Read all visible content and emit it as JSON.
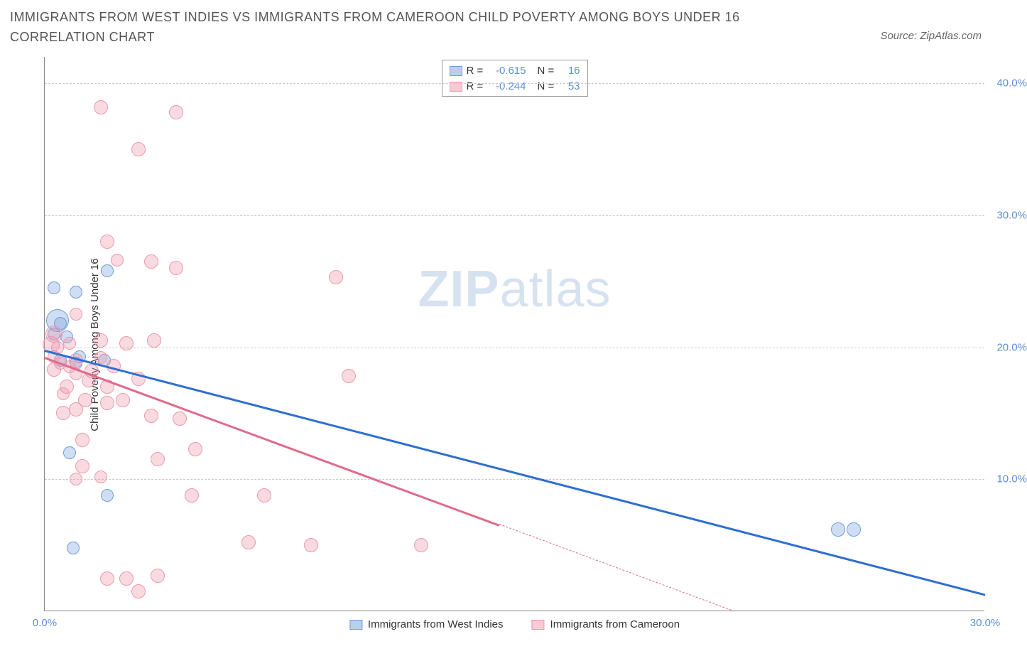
{
  "title": "IMMIGRANTS FROM WEST INDIES VS IMMIGRANTS FROM CAMEROON CHILD POVERTY AMONG BOYS UNDER 16 CORRELATION CHART",
  "source_label": "Source: ZipAtlas.com",
  "y_axis_label": "Child Poverty Among Boys Under 16",
  "watermark_bold": "ZIP",
  "watermark_rest": "atlas",
  "chart": {
    "type": "scatter-with-regression",
    "xlim": [
      0,
      30
    ],
    "ylim": [
      0,
      42
    ],
    "y_ticks": [
      10,
      20,
      30,
      40
    ],
    "y_tick_labels": [
      "10.0%",
      "20.0%",
      "30.0%",
      "40.0%"
    ],
    "x_ticks": [
      0,
      30
    ],
    "x_tick_labels": [
      "0.0%",
      "30.0%"
    ],
    "grid_color": "#cccccc",
    "background_color": "#ffffff",
    "axis_color": "#888888",
    "tick_label_color": "#5b8fd6",
    "y_tick_label_fontsize": 15,
    "series": [
      {
        "name": "Immigrants from West Indies",
        "color_fill": "rgba(120,160,220,0.35)",
        "color_stroke": "#6f9fd8",
        "trend_color": "#2e6fd0",
        "marker_radius": 9,
        "R": "-0.615",
        "N": "16",
        "points": [
          [
            0.3,
            24.5,
            9
          ],
          [
            1.0,
            24.2,
            9
          ],
          [
            0.4,
            22.0,
            16
          ],
          [
            0.3,
            21.0,
            9
          ],
          [
            0.7,
            20.8,
            9
          ],
          [
            2.0,
            25.8,
            9
          ],
          [
            0.5,
            19.0,
            9
          ],
          [
            1.1,
            19.3,
            9
          ],
          [
            1.0,
            18.8,
            9
          ],
          [
            1.9,
            19.0,
            9
          ],
          [
            0.8,
            12.0,
            9
          ],
          [
            2.0,
            8.8,
            9
          ],
          [
            0.9,
            4.8,
            9
          ],
          [
            25.3,
            6.2,
            10
          ],
          [
            25.8,
            6.2,
            10
          ],
          [
            0.5,
            21.8,
            9
          ]
        ],
        "trend": {
          "x1": 0,
          "y1": 19.8,
          "x2": 30,
          "y2": 1.3
        }
      },
      {
        "name": "Immigrants from Cameroon",
        "color_fill": "rgba(240,150,170,0.35)",
        "color_stroke": "#e89ab0",
        "trend_color": "#e06a8a",
        "marker_radius": 9,
        "R": "-0.244",
        "N": "53",
        "points": [
          [
            1.8,
            38.2,
            10
          ],
          [
            4.2,
            37.8,
            10
          ],
          [
            3.0,
            35.0,
            10
          ],
          [
            2.0,
            28.0,
            10
          ],
          [
            2.3,
            26.6,
            9
          ],
          [
            3.4,
            26.5,
            10
          ],
          [
            4.2,
            26.0,
            10
          ],
          [
            9.3,
            25.3,
            10
          ],
          [
            1.0,
            22.5,
            9
          ],
          [
            0.3,
            21.0,
            12
          ],
          [
            0.2,
            20.2,
            12
          ],
          [
            0.4,
            20.0,
            9
          ],
          [
            0.8,
            20.3,
            9
          ],
          [
            1.8,
            20.5,
            10
          ],
          [
            2.6,
            20.3,
            10
          ],
          [
            3.5,
            20.5,
            10
          ],
          [
            1.0,
            19.0,
            10
          ],
          [
            0.3,
            18.3,
            10
          ],
          [
            0.5,
            18.8,
            9
          ],
          [
            1.5,
            18.2,
            10
          ],
          [
            2.2,
            18.6,
            10
          ],
          [
            3.0,
            17.6,
            10
          ],
          [
            2.0,
            17.0,
            10
          ],
          [
            9.7,
            17.8,
            10
          ],
          [
            0.7,
            17.0,
            10
          ],
          [
            1.3,
            16.0,
            10
          ],
          [
            2.0,
            15.8,
            10
          ],
          [
            2.5,
            16.0,
            10
          ],
          [
            0.6,
            15.0,
            10
          ],
          [
            1.0,
            15.3,
            10
          ],
          [
            3.4,
            14.8,
            10
          ],
          [
            4.3,
            14.6,
            10
          ],
          [
            1.2,
            13.0,
            10
          ],
          [
            1.4,
            17.5,
            10
          ],
          [
            1.2,
            11.0,
            10
          ],
          [
            3.6,
            11.5,
            10
          ],
          [
            4.8,
            12.3,
            10
          ],
          [
            4.7,
            8.8,
            10
          ],
          [
            7.0,
            8.8,
            10
          ],
          [
            6.5,
            5.2,
            10
          ],
          [
            8.5,
            5.0,
            10
          ],
          [
            12.0,
            5.0,
            10
          ],
          [
            2.0,
            2.5,
            10
          ],
          [
            2.6,
            2.5,
            10
          ],
          [
            3.6,
            2.7,
            10
          ],
          [
            3.0,
            1.5,
            10
          ],
          [
            0.3,
            19.3,
            9
          ],
          [
            1.0,
            18.0,
            9
          ],
          [
            1.8,
            19.2,
            9
          ],
          [
            1.0,
            10.0,
            9
          ],
          [
            1.8,
            10.2,
            9
          ],
          [
            0.6,
            16.5,
            9
          ],
          [
            0.8,
            18.5,
            9
          ]
        ],
        "trend": {
          "x1": 0,
          "y1": 19.3,
          "x2": 14.5,
          "y2": 6.6
        },
        "trend_extrapolate": {
          "x1": 14.5,
          "y1": 6.6,
          "x2": 22.0,
          "y2": 0
        }
      }
    ]
  },
  "legend_top": {
    "rows": [
      {
        "swatch_fill": "rgba(120,160,220,0.5)",
        "swatch_border": "#6f9fd8",
        "R_label": "R =",
        "R": "-0.615",
        "N_label": "N =",
        "N": "16"
      },
      {
        "swatch_fill": "rgba(240,150,170,0.5)",
        "swatch_border": "#e89ab0",
        "R_label": "R =",
        "R": "-0.244",
        "N_label": "N =",
        "N": "53"
      }
    ]
  },
  "legend_bottom": {
    "items": [
      {
        "swatch_fill": "rgba(120,160,220,0.5)",
        "swatch_border": "#6f9fd8",
        "label": "Immigrants from West Indies"
      },
      {
        "swatch_fill": "rgba(240,150,170,0.5)",
        "swatch_border": "#e89ab0",
        "label": "Immigrants from Cameroon"
      }
    ]
  }
}
